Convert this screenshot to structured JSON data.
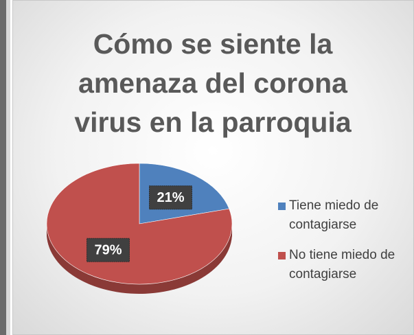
{
  "chart_data": {
    "type": "pie",
    "title": "Cómo se siente la amenaza del corona virus en la parroquia",
    "categories": [
      "Tiene miedo de contagiarse",
      "No tiene miedo de contagiarse"
    ],
    "values": [
      21,
      79
    ],
    "value_labels": [
      "21%",
      "79%"
    ],
    "colors": [
      "#4f81bd",
      "#c0504d"
    ]
  }
}
